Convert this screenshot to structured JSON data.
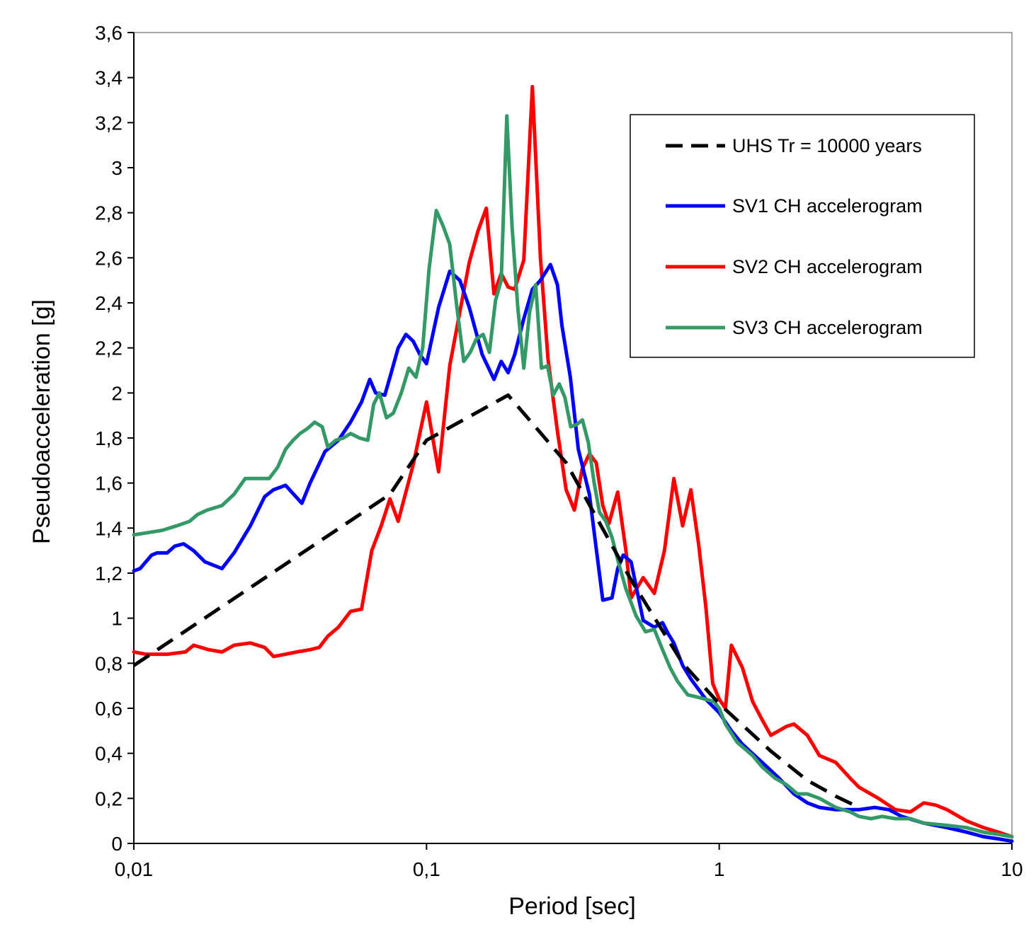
{
  "chart_data": {
    "type": "line",
    "title": "",
    "xlabel": "Period [sec]",
    "ylabel": "Pseudoacceleration [g]",
    "x_scale": "log",
    "xlim": [
      0.01,
      10
    ],
    "ylim": [
      0,
      3.6
    ],
    "grid": false,
    "legend_position": "top-right",
    "x_ticks": [
      {
        "value": 0.01,
        "label": "0,01"
      },
      {
        "value": 0.1,
        "label": "0,1"
      },
      {
        "value": 1,
        "label": "1"
      },
      {
        "value": 10,
        "label": "10"
      }
    ],
    "y_ticks": [
      {
        "value": 0,
        "label": "0"
      },
      {
        "value": 0.2,
        "label": "0,2"
      },
      {
        "value": 0.4,
        "label": "0,4"
      },
      {
        "value": 0.6,
        "label": "0,6"
      },
      {
        "value": 0.8,
        "label": "0,8"
      },
      {
        "value": 1.0,
        "label": "1"
      },
      {
        "value": 1.2,
        "label": "1,2"
      },
      {
        "value": 1.4,
        "label": "1,4"
      },
      {
        "value": 1.6,
        "label": "1,6"
      },
      {
        "value": 1.8,
        "label": "1,8"
      },
      {
        "value": 2.0,
        "label": "2"
      },
      {
        "value": 2.2,
        "label": "2,2"
      },
      {
        "value": 2.4,
        "label": "2,4"
      },
      {
        "value": 2.6,
        "label": "2,6"
      },
      {
        "value": 2.8,
        "label": "2,8"
      },
      {
        "value": 3.0,
        "label": "3"
      },
      {
        "value": 3.2,
        "label": "3,2"
      },
      {
        "value": 3.4,
        "label": "3,4"
      },
      {
        "value": 3.6,
        "label": "3,6"
      }
    ],
    "series": [
      {
        "name": "UHS Tr = 10000 years",
        "color": "#000000",
        "dashed": true,
        "x": [
          0.01,
          0.075,
          0.1,
          0.19,
          0.3,
          0.5,
          0.75,
          1.0,
          1.5,
          2.0,
          2.5,
          3.0
        ],
        "y": [
          0.79,
          1.55,
          1.79,
          1.99,
          1.69,
          1.17,
          0.8,
          0.62,
          0.41,
          0.28,
          0.21,
          0.16
        ]
      },
      {
        "name": "SV1 CH accelerogram",
        "color": "#0000ff",
        "dashed": false,
        "x": [
          0.01,
          0.0105,
          0.0115,
          0.012,
          0.013,
          0.0138,
          0.0148,
          0.016,
          0.0175,
          0.02,
          0.022,
          0.025,
          0.028,
          0.03,
          0.033,
          0.0375,
          0.04,
          0.045,
          0.05,
          0.055,
          0.06,
          0.064,
          0.067,
          0.072,
          0.075,
          0.08,
          0.085,
          0.09,
          0.095,
          0.1,
          0.11,
          0.12,
          0.13,
          0.14,
          0.155,
          0.17,
          0.18,
          0.19,
          0.2,
          0.215,
          0.23,
          0.245,
          0.265,
          0.28,
          0.29,
          0.31,
          0.33,
          0.36,
          0.4,
          0.43,
          0.45,
          0.47,
          0.5,
          0.55,
          0.6,
          0.64,
          0.67,
          0.7,
          0.75,
          0.8,
          0.9,
          1.0,
          1.1,
          1.2,
          1.4,
          1.6,
          1.8,
          2.0,
          2.2,
          2.5,
          3.0,
          3.4,
          3.8,
          4.2,
          5.0,
          6.0,
          7.0,
          8.0,
          9.0,
          10.0
        ],
        "y": [
          1.21,
          1.22,
          1.28,
          1.29,
          1.29,
          1.32,
          1.33,
          1.3,
          1.25,
          1.22,
          1.29,
          1.41,
          1.54,
          1.57,
          1.59,
          1.51,
          1.6,
          1.74,
          1.79,
          1.87,
          1.96,
          2.06,
          2.0,
          1.99,
          2.07,
          2.2,
          2.26,
          2.23,
          2.17,
          2.13,
          2.38,
          2.54,
          2.5,
          2.38,
          2.17,
          2.06,
          2.14,
          2.09,
          2.17,
          2.33,
          2.46,
          2.5,
          2.57,
          2.48,
          2.3,
          2.07,
          1.75,
          1.55,
          1.08,
          1.09,
          1.22,
          1.28,
          1.25,
          0.99,
          0.96,
          0.98,
          0.93,
          0.89,
          0.79,
          0.73,
          0.64,
          0.58,
          0.5,
          0.44,
          0.36,
          0.29,
          0.22,
          0.18,
          0.16,
          0.15,
          0.15,
          0.16,
          0.15,
          0.12,
          0.09,
          0.07,
          0.05,
          0.03,
          0.02,
          0.01
        ]
      },
      {
        "name": "SV2 CH accelerogram",
        "color": "#ff0000",
        "dashed": false,
        "x": [
          0.01,
          0.011,
          0.012,
          0.013,
          0.015,
          0.016,
          0.018,
          0.02,
          0.022,
          0.025,
          0.028,
          0.03,
          0.033,
          0.036,
          0.04,
          0.043,
          0.046,
          0.05,
          0.055,
          0.06,
          0.065,
          0.07,
          0.075,
          0.08,
          0.085,
          0.09,
          0.1,
          0.11,
          0.12,
          0.13,
          0.14,
          0.15,
          0.16,
          0.17,
          0.18,
          0.19,
          0.2,
          0.215,
          0.23,
          0.245,
          0.26,
          0.28,
          0.3,
          0.32,
          0.34,
          0.36,
          0.38,
          0.4,
          0.42,
          0.45,
          0.48,
          0.5,
          0.55,
          0.6,
          0.65,
          0.7,
          0.75,
          0.8,
          0.85,
          0.9,
          0.95,
          1.0,
          1.05,
          1.1,
          1.2,
          1.3,
          1.4,
          1.5,
          1.7,
          1.8,
          2.0,
          2.2,
          2.5,
          2.8,
          3.0,
          3.5,
          4.0,
          4.5,
          5.0,
          5.5,
          6.0,
          7.0,
          8.0,
          9.0,
          10.0
        ],
        "y": [
          0.85,
          0.84,
          0.84,
          0.84,
          0.85,
          0.88,
          0.86,
          0.85,
          0.88,
          0.89,
          0.87,
          0.83,
          0.84,
          0.85,
          0.86,
          0.87,
          0.92,
          0.96,
          1.03,
          1.04,
          1.3,
          1.41,
          1.53,
          1.43,
          1.56,
          1.68,
          1.96,
          1.65,
          2.12,
          2.36,
          2.58,
          2.72,
          2.82,
          2.44,
          2.53,
          2.47,
          2.46,
          2.59,
          3.36,
          2.6,
          2.15,
          1.83,
          1.57,
          1.48,
          1.66,
          1.73,
          1.69,
          1.5,
          1.42,
          1.56,
          1.3,
          1.09,
          1.18,
          1.11,
          1.3,
          1.62,
          1.41,
          1.57,
          1.33,
          1.05,
          0.71,
          0.64,
          0.6,
          0.88,
          0.78,
          0.63,
          0.55,
          0.48,
          0.52,
          0.53,
          0.48,
          0.39,
          0.36,
          0.29,
          0.25,
          0.2,
          0.15,
          0.14,
          0.18,
          0.17,
          0.15,
          0.1,
          0.07,
          0.05,
          0.03
        ]
      },
      {
        "name": "SV3 CH accelerogram",
        "color": "#339966",
        "dashed": false,
        "x": [
          0.01,
          0.0112,
          0.0125,
          0.014,
          0.0155,
          0.0165,
          0.0178,
          0.02,
          0.022,
          0.024,
          0.0265,
          0.029,
          0.031,
          0.033,
          0.035,
          0.037,
          0.039,
          0.0415,
          0.044,
          0.046,
          0.049,
          0.052,
          0.055,
          0.059,
          0.063,
          0.066,
          0.069,
          0.073,
          0.077,
          0.082,
          0.087,
          0.092,
          0.097,
          0.102,
          0.108,
          0.114,
          0.12,
          0.127,
          0.134,
          0.141,
          0.148,
          0.156,
          0.164,
          0.172,
          0.18,
          0.188,
          0.196,
          0.205,
          0.215,
          0.225,
          0.236,
          0.247,
          0.259,
          0.271,
          0.284,
          0.297,
          0.311,
          0.326,
          0.341,
          0.357,
          0.374,
          0.39,
          0.41,
          0.43,
          0.45,
          0.48,
          0.52,
          0.56,
          0.6,
          0.64,
          0.68,
          0.72,
          0.78,
          0.84,
          0.9,
          0.96,
          1.0,
          1.05,
          1.15,
          1.3,
          1.4,
          1.55,
          1.7,
          1.85,
          2.0,
          2.2,
          2.5,
          2.8,
          3.0,
          3.3,
          3.6,
          4.0,
          4.5,
          5.0,
          6.0,
          7.0,
          8.0,
          9.0,
          10.0
        ],
        "y": [
          1.37,
          1.38,
          1.39,
          1.41,
          1.43,
          1.46,
          1.48,
          1.5,
          1.55,
          1.62,
          1.62,
          1.62,
          1.67,
          1.75,
          1.79,
          1.82,
          1.84,
          1.87,
          1.85,
          1.76,
          1.79,
          1.8,
          1.82,
          1.8,
          1.79,
          1.95,
          2.0,
          1.89,
          1.91,
          2.0,
          2.11,
          2.07,
          2.2,
          2.55,
          2.81,
          2.74,
          2.66,
          2.38,
          2.14,
          2.18,
          2.24,
          2.26,
          2.18,
          2.41,
          2.5,
          3.23,
          2.74,
          2.38,
          2.11,
          2.36,
          2.48,
          2.11,
          2.12,
          1.99,
          2.04,
          1.98,
          1.85,
          1.86,
          1.88,
          1.78,
          1.6,
          1.47,
          1.43,
          1.36,
          1.26,
          1.13,
          1.01,
          0.94,
          0.95,
          0.86,
          0.78,
          0.72,
          0.66,
          0.65,
          0.64,
          0.63,
          0.6,
          0.53,
          0.45,
          0.39,
          0.34,
          0.29,
          0.26,
          0.22,
          0.22,
          0.2,
          0.16,
          0.14,
          0.12,
          0.11,
          0.12,
          0.11,
          0.11,
          0.09,
          0.08,
          0.07,
          0.05,
          0.04,
          0.03
        ]
      }
    ]
  }
}
